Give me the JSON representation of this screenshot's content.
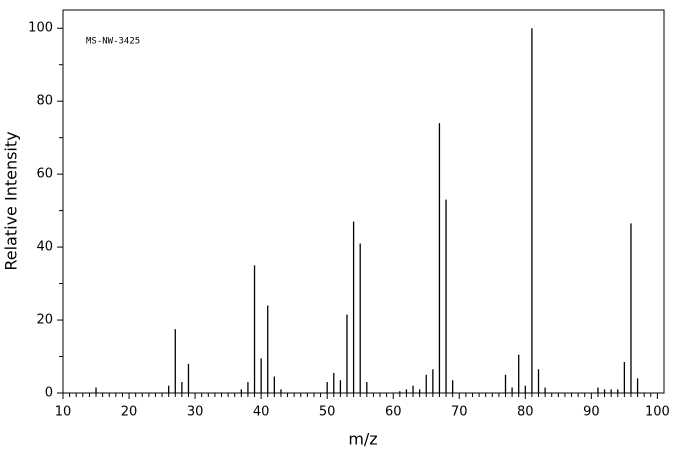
{
  "chart_data": {
    "type": "stem",
    "annotation": "MS-NW-3425",
    "x_label": "m/z",
    "y_label": "Relative Intensity",
    "color": "#000000",
    "x": [
      15,
      26,
      27,
      28,
      29,
      37,
      38,
      39,
      40,
      41,
      42,
      43,
      50,
      51,
      52,
      53,
      54,
      55,
      56,
      61,
      62,
      63,
      64,
      65,
      66,
      67,
      68,
      69,
      77,
      78,
      79,
      80,
      81,
      82,
      83,
      91,
      92,
      93,
      94,
      95,
      96,
      97
    ],
    "values": [
      1.5,
      2,
      17.5,
      3,
      8,
      1,
      3,
      35,
      9.5,
      24,
      4.5,
      1,
      3,
      5.5,
      3.5,
      21.5,
      47,
      41,
      3,
      0.5,
      1,
      2,
      1,
      5,
      6.5,
      74,
      53,
      3.5,
      5,
      1.5,
      10.5,
      2,
      100,
      6.5,
      1.5,
      1.5,
      1,
      1,
      1,
      8.5,
      46.5,
      4
    ],
    "xlim": [
      10,
      101
    ],
    "ylim": [
      0,
      105
    ],
    "xticks": [
      10,
      20,
      30,
      40,
      50,
      60,
      70,
      80,
      90,
      100
    ],
    "xticks_minor": [
      11,
      12,
      13,
      14,
      15,
      16,
      17,
      18,
      19,
      21,
      22,
      23,
      24,
      25,
      26,
      27,
      28,
      29,
      31,
      32,
      33,
      34,
      35,
      36,
      37,
      38,
      39,
      41,
      42,
      43,
      44,
      45,
      46,
      47,
      48,
      49,
      51,
      52,
      53,
      54,
      55,
      56,
      57,
      58,
      59,
      61,
      62,
      63,
      64,
      65,
      66,
      67,
      68,
      69,
      71,
      72,
      73,
      74,
      75,
      76,
      77,
      78,
      79,
      81,
      82,
      83,
      84,
      85,
      86,
      87,
      88,
      89,
      91,
      92,
      93,
      94,
      95,
      96,
      97,
      98,
      99
    ],
    "yticks": [
      0,
      20,
      40,
      60,
      80,
      100
    ],
    "yticks_minor": [
      10,
      30,
      50,
      70,
      90
    ],
    "grid": false
  }
}
